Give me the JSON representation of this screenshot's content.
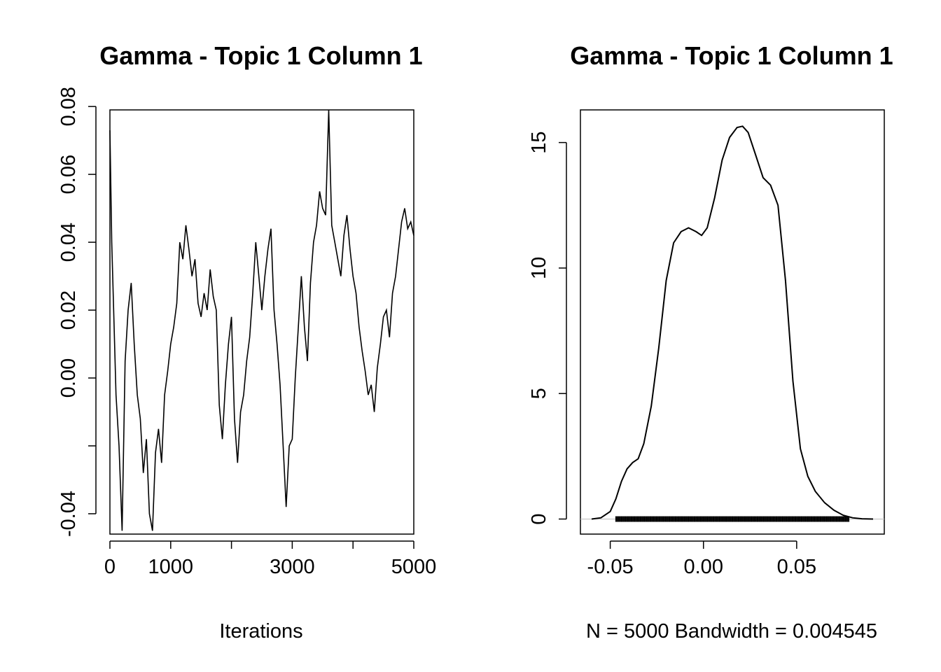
{
  "chart_data": [
    {
      "type": "line",
      "title": "Gamma - Topic 1 Column 1",
      "xlabel": "Iterations",
      "ylabel": "",
      "xlim": [
        0,
        5000
      ],
      "ylim": [
        -0.046,
        0.079
      ],
      "x_ticks": [
        0,
        1000,
        2000,
        3000,
        4000,
        5000
      ],
      "x_tick_labels": [
        "0",
        "1000",
        "",
        "3000",
        "",
        "5000"
      ],
      "y_ticks": [
        -0.04,
        -0.02,
        0.0,
        0.02,
        0.04,
        0.06,
        0.08
      ],
      "y_tick_labels": [
        "-0.04",
        "",
        "0.00",
        "0.02",
        "0.04",
        "0.06",
        "0.08"
      ],
      "series": [
        {
          "x": [
            0,
            30,
            60,
            100,
            150,
            200,
            250,
            300,
            350,
            400,
            450,
            500,
            550,
            600,
            650,
            700,
            750,
            800,
            850,
            900,
            950,
            1000,
            1050,
            1100,
            1150,
            1200,
            1250,
            1300,
            1350,
            1400,
            1450,
            1500,
            1550,
            1600,
            1650,
            1700,
            1750,
            1800,
            1850,
            1900,
            1950,
            2000,
            2050,
            2100,
            2150,
            2200,
            2250,
            2300,
            2350,
            2400,
            2450,
            2500,
            2550,
            2600,
            2650,
            2700,
            2750,
            2800,
            2850,
            2900,
            2950,
            3000,
            3050,
            3100,
            3150,
            3200,
            3250,
            3300,
            3350,
            3400,
            3450,
            3500,
            3550,
            3600,
            3650,
            3700,
            3750,
            3800,
            3850,
            3900,
            3950,
            4000,
            4050,
            4100,
            4150,
            4200,
            4250,
            4300,
            4350,
            4400,
            4450,
            4500,
            4550,
            4600,
            4650,
            4700,
            4750,
            4800,
            4850,
            4900,
            4950,
            5000
          ],
          "values": [
            0.073,
            0.04,
            0.021,
            -0.005,
            -0.02,
            -0.045,
            0.005,
            0.02,
            0.028,
            0.01,
            -0.005,
            -0.012,
            -0.028,
            -0.018,
            -0.04,
            -0.045,
            -0.022,
            -0.015,
            -0.025,
            -0.005,
            0.002,
            0.01,
            0.015,
            0.022,
            0.04,
            0.035,
            0.045,
            0.038,
            0.03,
            0.035,
            0.022,
            0.018,
            0.025,
            0.02,
            0.032,
            0.024,
            0.02,
            -0.008,
            -0.018,
            -0.002,
            0.01,
            0.018,
            -0.012,
            -0.025,
            -0.01,
            -0.005,
            0.005,
            0.012,
            0.025,
            0.04,
            0.03,
            0.02,
            0.03,
            0.038,
            0.044,
            0.02,
            0.01,
            -0.002,
            -0.02,
            -0.038,
            -0.02,
            -0.018,
            0.0,
            0.015,
            0.03,
            0.015,
            0.005,
            0.028,
            0.04,
            0.045,
            0.055,
            0.05,
            0.048,
            0.079,
            0.045,
            0.04,
            0.035,
            0.03,
            0.042,
            0.048,
            0.038,
            0.03,
            0.025,
            0.015,
            0.008,
            0.002,
            -0.005,
            -0.002,
            -0.01,
            0.003,
            0.01,
            0.018,
            0.02,
            0.012,
            0.025,
            0.03,
            0.038,
            0.046,
            0.05,
            0.044,
            0.046,
            0.042
          ]
        }
      ]
    },
    {
      "type": "line",
      "title": "Gamma - Topic 1 Column 1",
      "xlabel": "N = 5000   Bandwidth = 0.004545",
      "ylabel": "",
      "xlim": [
        -0.066,
        0.097
      ],
      "ylim": [
        -0.6,
        16.3
      ],
      "x_ticks": [
        -0.05,
        0.0,
        0.05
      ],
      "x_tick_labels": [
        "-0.05",
        "0.00",
        "0.05"
      ],
      "y_ticks": [
        0,
        5,
        10,
        15
      ],
      "y_tick_labels": [
        "0",
        "5",
        "10",
        "15"
      ],
      "series": [
        {
          "x": [
            -0.06,
            -0.055,
            -0.05,
            -0.047,
            -0.044,
            -0.041,
            -0.038,
            -0.035,
            -0.032,
            -0.028,
            -0.024,
            -0.02,
            -0.016,
            -0.012,
            -0.008,
            -0.004,
            -0.001,
            0.002,
            0.006,
            0.01,
            0.014,
            0.018,
            0.021,
            0.024,
            0.028,
            0.032,
            0.036,
            0.04,
            0.044,
            0.048,
            0.052,
            0.056,
            0.06,
            0.065,
            0.07,
            0.075,
            0.08,
            0.085,
            0.091
          ],
          "values": [
            0.0,
            0.05,
            0.3,
            0.8,
            1.5,
            2.0,
            2.25,
            2.4,
            3.0,
            4.5,
            6.8,
            9.5,
            11.0,
            11.45,
            11.6,
            11.45,
            11.3,
            11.6,
            12.8,
            14.3,
            15.2,
            15.6,
            15.65,
            15.4,
            14.5,
            13.6,
            13.3,
            12.5,
            9.5,
            5.5,
            2.8,
            1.7,
            1.1,
            0.65,
            0.35,
            0.15,
            0.05,
            0.01,
            0.0
          ]
        }
      ],
      "rug_x_range": [
        -0.047,
        0.078
      ]
    }
  ]
}
